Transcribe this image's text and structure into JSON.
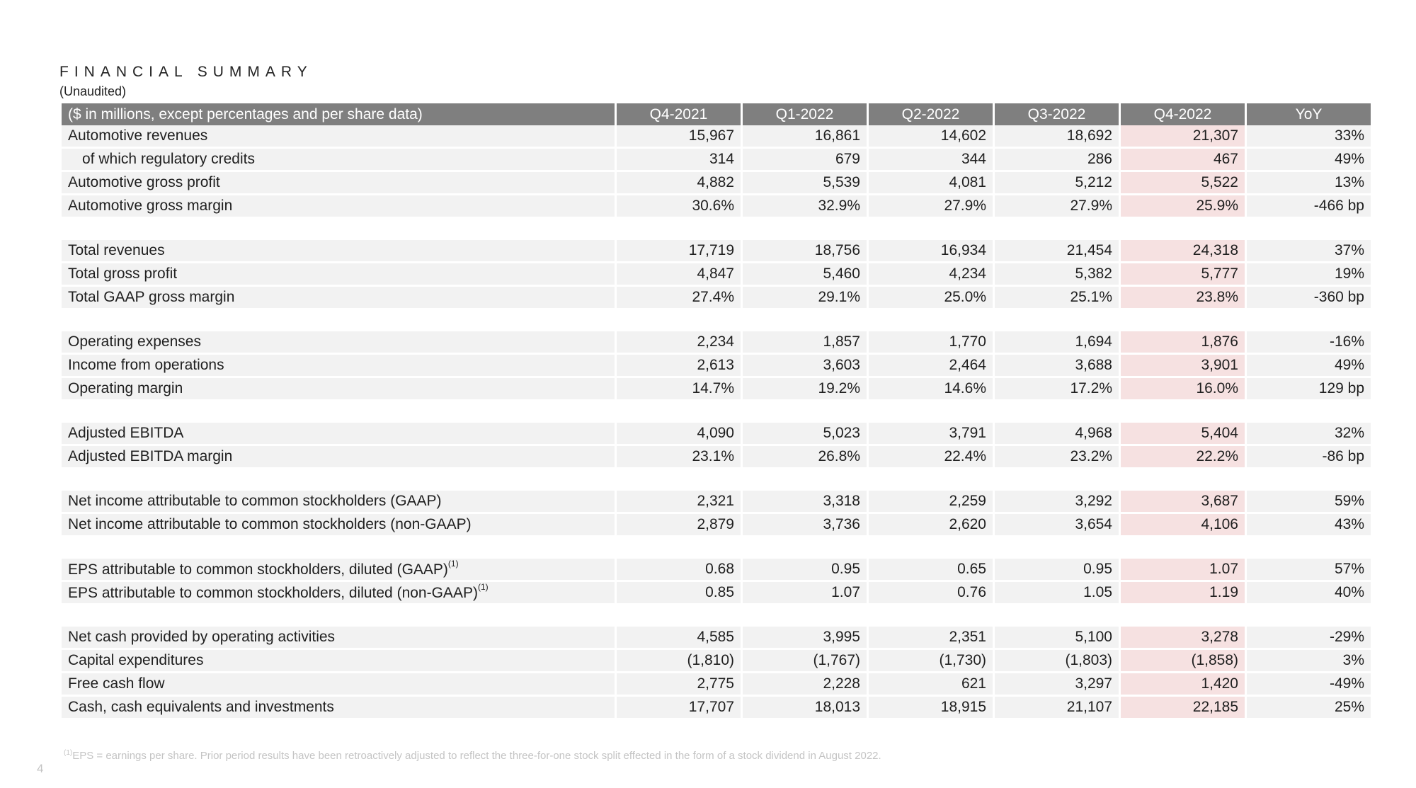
{
  "title": "FINANCIAL SUMMARY",
  "subtitle": "(Unaudited)",
  "colors": {
    "header_bg": "#7f7f7f",
    "row_bg": "#f2f2f2",
    "highlight_bg": "#f6e1e1"
  },
  "table": {
    "header": {
      "label": "($ in millions, except percentages and per share data)",
      "columns": [
        "Q4-2021",
        "Q1-2022",
        "Q2-2022",
        "Q3-2022",
        "Q4-2022",
        "YoY"
      ]
    },
    "groups": [
      [
        {
          "label": "Automotive revenues",
          "values": [
            "15,967",
            "16,861",
            "14,602",
            "18,692",
            "21,307",
            "33%"
          ]
        },
        {
          "label": "of which regulatory credits",
          "values": [
            "314",
            "679",
            "344",
            "286",
            "467",
            "49%"
          ]
        },
        {
          "label": "Automotive gross profit",
          "values": [
            "4,882",
            "5,539",
            "4,081",
            "5,212",
            "5,522",
            "13%"
          ]
        },
        {
          "label": "Automotive gross margin",
          "values": [
            "30.6%",
            "32.9%",
            "27.9%",
            "27.9%",
            "25.9%",
            "-466 bp"
          ]
        }
      ],
      [
        {
          "label": "Total revenues",
          "values": [
            "17,719",
            "18,756",
            "16,934",
            "21,454",
            "24,318",
            "37%"
          ]
        },
        {
          "label": "Total gross profit",
          "values": [
            "4,847",
            "5,460",
            "4,234",
            "5,382",
            "5,777",
            "19%"
          ]
        },
        {
          "label": "Total GAAP gross margin",
          "values": [
            "27.4%",
            "29.1%",
            "25.0%",
            "25.1%",
            "23.8%",
            "-360 bp"
          ]
        }
      ],
      [
        {
          "label": "Operating expenses",
          "values": [
            "2,234",
            "1,857",
            "1,770",
            "1,694",
            "1,876",
            "-16%"
          ]
        },
        {
          "label": "Income from operations",
          "values": [
            "2,613",
            "3,603",
            "2,464",
            "3,688",
            "3,901",
            "49%"
          ]
        },
        {
          "label": "Operating margin",
          "values": [
            "14.7%",
            "19.2%",
            "14.6%",
            "17.2%",
            "16.0%",
            "129 bp"
          ]
        }
      ],
      [
        {
          "label": "Adjusted EBITDA",
          "values": [
            "4,090",
            "5,023",
            "3,791",
            "4,968",
            "5,404",
            "32%"
          ]
        },
        {
          "label": "Adjusted EBITDA margin",
          "values": [
            "23.1%",
            "26.8%",
            "22.4%",
            "23.2%",
            "22.2%",
            "-86 bp"
          ]
        }
      ],
      [
        {
          "label": "Net income attributable to common stockholders (GAAP)",
          "values": [
            "2,321",
            "3,318",
            "2,259",
            "3,292",
            "3,687",
            "59%"
          ]
        },
        {
          "label": "Net income attributable to common stockholders (non-GAAP)",
          "values": [
            "2,879",
            "3,736",
            "2,620",
            "3,654",
            "4,106",
            "43%"
          ]
        }
      ],
      [
        {
          "label": "EPS attributable to common stockholders, diluted (GAAP)",
          "sup": "(1)",
          "values": [
            "0.68",
            "0.95",
            "0.65",
            "0.95",
            "1.07",
            "57%"
          ]
        },
        {
          "label": "EPS attributable to common stockholders, diluted (non-GAAP)",
          "sup": "(1)",
          "values": [
            "0.85",
            "1.07",
            "0.76",
            "1.05",
            "1.19",
            "40%"
          ]
        }
      ],
      [
        {
          "label": "Net cash provided by operating activities",
          "values": [
            "4,585",
            "3,995",
            "2,351",
            "5,100",
            "3,278",
            "-29%"
          ]
        },
        {
          "label": "Capital expenditures",
          "values": [
            "(1,810)",
            "(1,767)",
            "(1,730)",
            "(1,803)",
            "(1,858)",
            "3%"
          ]
        },
        {
          "label": "Free cash flow",
          "values": [
            "2,775",
            "2,228",
            "621",
            "3,297",
            "1,420",
            "-49%"
          ]
        },
        {
          "label": "Cash, cash equivalents and investments",
          "values": [
            "17,707",
            "18,013",
            "18,915",
            "21,107",
            "22,185",
            "25%"
          ]
        }
      ]
    ]
  },
  "footnote": {
    "marker": "(1)",
    "text": "EPS = earnings per share. Prior period results have been retroactively adjusted to reflect the three-for-one stock split effected in the form of a stock dividend in August 2022."
  },
  "page_number": "4"
}
